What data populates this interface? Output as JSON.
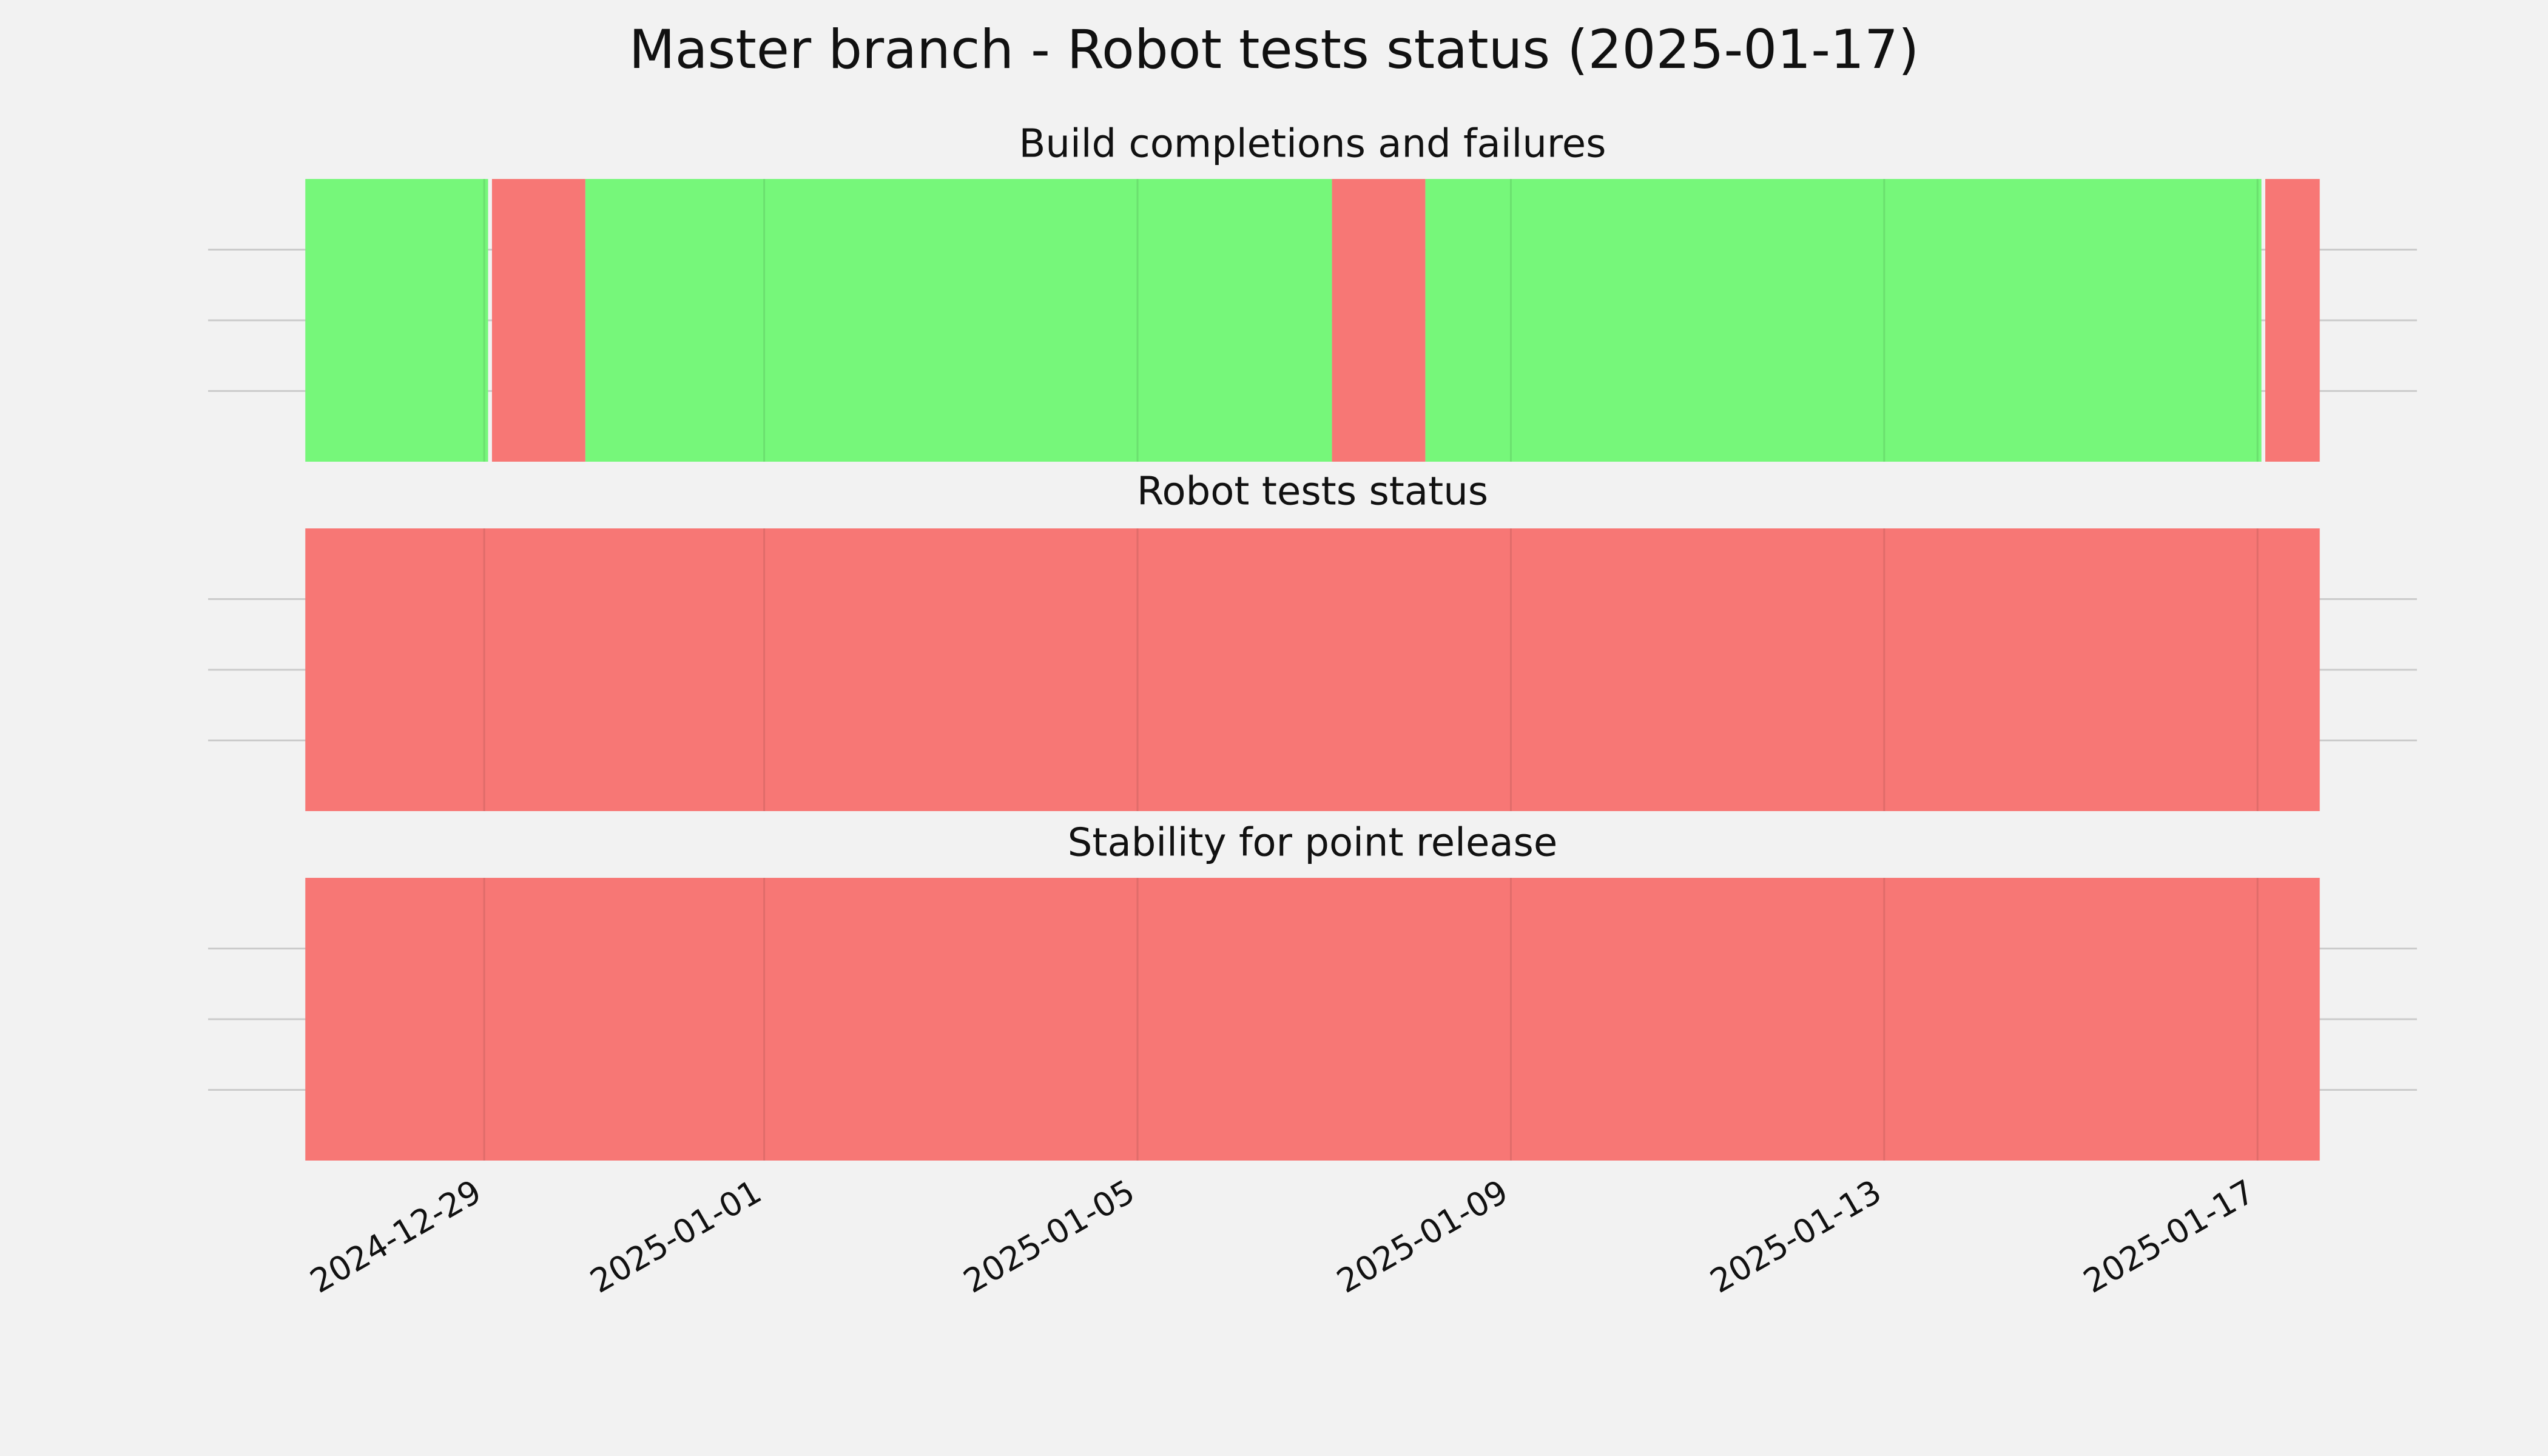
{
  "title": "Master branch - Robot tests status (2025-01-17)",
  "chart_data": [
    {
      "type": "timeline",
      "title": "Build completions and failures",
      "xlim": [
        "2024-12-26T01:00",
        "2025-01-18T17:00"
      ],
      "xticks": [
        "2024-12-29",
        "2025-01-01",
        "2025-01-05",
        "2025-01-09",
        "2025-01-13",
        "2025-01-17"
      ],
      "ylim": [
        0,
        1
      ],
      "yticks": [
        0.25,
        0.5,
        0.75
      ],
      "grid": true,
      "series": [
        {
          "color": "#76f77a",
          "spans": [
            [
              "2024-12-27T02:00",
              "2024-12-29T01:00"
            ],
            [
              "2024-12-30T02:00",
              "2025-01-07T02:00"
            ],
            [
              "2025-01-08T02:00",
              "2025-01-17T01:00"
            ]
          ]
        },
        {
          "color": "#f77775",
          "spans": [
            [
              "2024-12-29T02:00",
              "2024-12-30T02:00"
            ],
            [
              "2025-01-07T02:00",
              "2025-01-08T02:00"
            ],
            [
              "2025-01-17T02:00",
              "2025-01-17T16:00"
            ]
          ]
        }
      ]
    },
    {
      "type": "timeline",
      "title": "Robot tests status",
      "xlim": [
        "2024-12-26T01:00",
        "2025-01-18T17:00"
      ],
      "xticks": [
        "2024-12-29",
        "2025-01-01",
        "2025-01-05",
        "2025-01-09",
        "2025-01-13",
        "2025-01-17"
      ],
      "ylim": [
        0,
        1
      ],
      "yticks": [
        0.25,
        0.5,
        0.75
      ],
      "grid": true,
      "series": [
        {
          "color": "#f77775",
          "spans": [
            [
              "2024-12-27T02:00",
              "2025-01-17T16:00"
            ]
          ]
        }
      ]
    },
    {
      "type": "timeline",
      "title": "Stability for point release",
      "xlim": [
        "2024-12-26T01:00",
        "2025-01-18T17:00"
      ],
      "xticks": [
        "2024-12-29",
        "2025-01-01",
        "2025-01-05",
        "2025-01-09",
        "2025-01-13",
        "2025-01-17"
      ],
      "ylim": [
        0,
        1
      ],
      "yticks": [
        0.25,
        0.5,
        0.75
      ],
      "grid": true,
      "series": [
        {
          "color": "#f77775",
          "spans": [
            [
              "2024-12-27T02:00",
              "2025-01-17T16:00"
            ]
          ]
        }
      ]
    }
  ]
}
